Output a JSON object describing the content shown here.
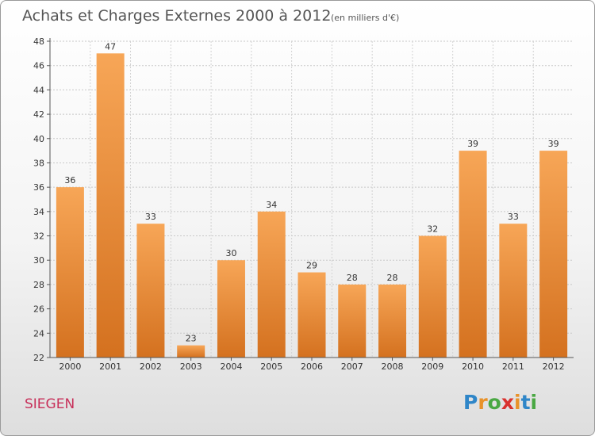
{
  "chart_data": {
    "type": "bar",
    "title": "Achats et Charges Externes 2000 à 2012",
    "subtitle": "(en milliers d'€)",
    "categories": [
      "2000",
      "2001",
      "2002",
      "2003",
      "2004",
      "2005",
      "2006",
      "2007",
      "2008",
      "2009",
      "2010",
      "2011",
      "2012"
    ],
    "values": [
      36,
      47,
      33,
      23,
      30,
      34,
      29,
      28,
      28,
      32,
      39,
      33,
      39
    ],
    "ylim": [
      22,
      48
    ],
    "yticks": [
      22,
      24,
      26,
      28,
      30,
      32,
      34,
      36,
      38,
      40,
      42,
      44,
      46,
      48
    ],
    "grid": true,
    "bar_color": "#e07b2a"
  },
  "commune": "SIEGEN",
  "logo": {
    "text": "Proxiti",
    "letters": [
      "P",
      "r",
      "o",
      "x",
      "i",
      "t",
      "i"
    ],
    "colors": [
      "#2f86c8",
      "#e8922a",
      "#4aa843",
      "#d9322e",
      "#e8922a",
      "#2f86c8",
      "#4aa843"
    ]
  }
}
